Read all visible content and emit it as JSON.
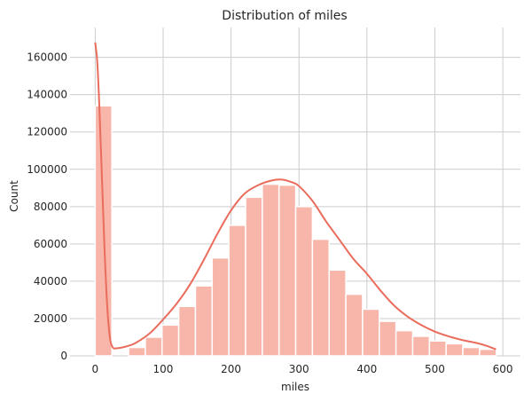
{
  "chart_data": {
    "type": "bar",
    "title": "Distribution of miles",
    "xlabel": "miles",
    "ylabel": "Count",
    "xlim": [
      -37,
      626
    ],
    "ylim": [
      0,
      176000
    ],
    "xticks": [
      0,
      100,
      200,
      300,
      400,
      500,
      600
    ],
    "yticks": [
      0,
      20000,
      40000,
      60000,
      80000,
      100000,
      120000,
      140000,
      160000
    ],
    "grid": true,
    "bin_width": 24.6,
    "bin_start": 0,
    "counts": [
      134000,
      0,
      4500,
      10000,
      16500,
      26500,
      37500,
      52500,
      70000,
      85000,
      92000,
      91500,
      80000,
      62500,
      46000,
      33000,
      25000,
      18500,
      13500,
      10500,
      8000,
      6500,
      4500,
      3500
    ],
    "kde": {
      "x": [
        0,
        3,
        6,
        10,
        14,
        18,
        22,
        26,
        30,
        40,
        50,
        60,
        80,
        100,
        120,
        140,
        160,
        180,
        200,
        220,
        240,
        260,
        275,
        290,
        300,
        320,
        340,
        360,
        380,
        400,
        420,
        440,
        460,
        480,
        500,
        520,
        540,
        560,
        575,
        590
      ],
      "y": [
        168000,
        158000,
        135000,
        95000,
        55000,
        25000,
        9000,
        4500,
        4000,
        4500,
        5500,
        7000,
        12000,
        19500,
        28000,
        38500,
        51500,
        65500,
        78000,
        87000,
        91500,
        94000,
        94500,
        93000,
        91000,
        83000,
        72000,
        62000,
        52000,
        44000,
        35000,
        27000,
        21000,
        16500,
        13000,
        10500,
        8500,
        7000,
        5500,
        3500
      ]
    },
    "colors": {
      "bar": "#f7b6a9",
      "bar_edge": "#ffffff",
      "kde": "#ea6c5c",
      "grid": "#cccccc"
    }
  }
}
